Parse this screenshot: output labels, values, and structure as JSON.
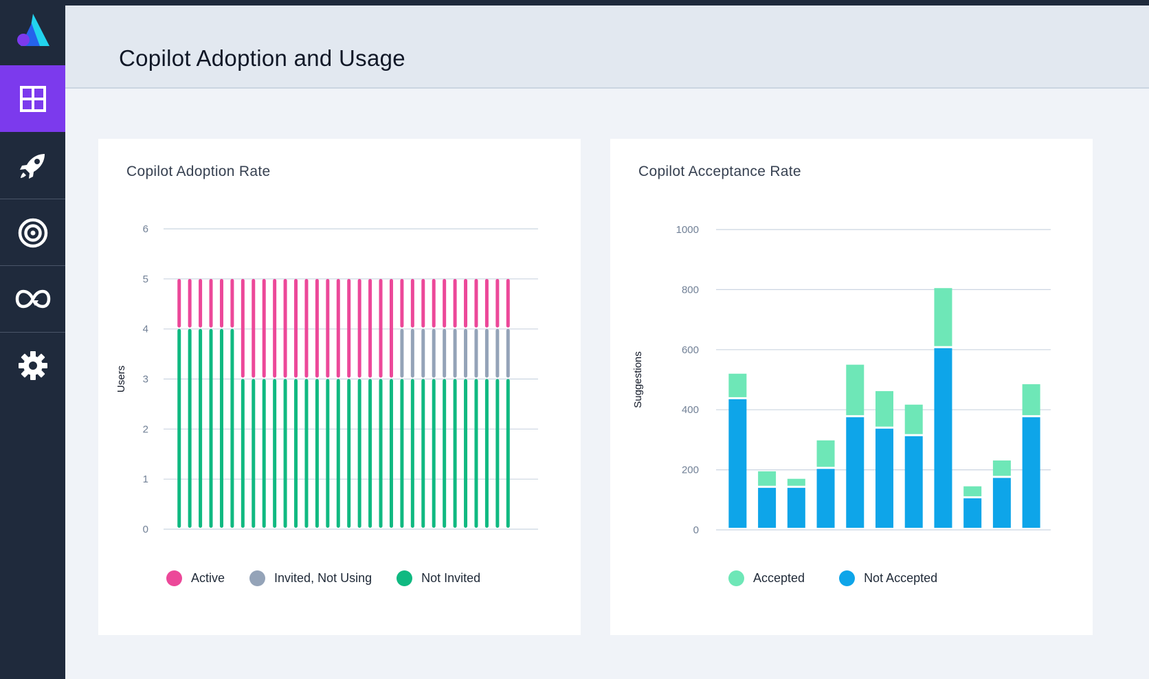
{
  "app": {
    "page_title": "Copilot Adoption and Usage"
  },
  "sidebar": {
    "logo": "app-logo",
    "items": [
      {
        "id": "dashboard",
        "icon": "grid-icon",
        "active": true
      },
      {
        "id": "launch",
        "icon": "rocket-icon",
        "active": false
      },
      {
        "id": "goals",
        "icon": "target-icon",
        "active": false
      },
      {
        "id": "cycle",
        "icon": "infinity-icon",
        "active": false
      },
      {
        "id": "settings",
        "icon": "gear-icon",
        "active": false
      }
    ]
  },
  "colors": {
    "active": "#ec4899",
    "invited_not_using": "#94a3b8",
    "not_invited": "#10b981",
    "accepted": "#6ee7b7",
    "not_accepted": "#0ea5e9",
    "sidebar_bg": "#1f2a3c",
    "sidebar_active": "#7c3aed"
  },
  "chart_data": [
    {
      "title": "Copilot Adoption Rate",
      "type": "bar",
      "stacked": true,
      "ylabel": "Users",
      "xlabel": "",
      "ylim": [
        0,
        6
      ],
      "yticks": [
        "0",
        "1",
        "2",
        "3",
        "4",
        "5",
        "6"
      ],
      "bar_count": 32,
      "series": [
        {
          "name": "Not Invited",
          "key": "not_invited",
          "values": [
            4,
            4,
            4,
            4,
            4,
            4,
            3,
            3,
            3,
            3,
            3,
            3,
            3,
            3,
            3,
            3,
            3,
            3,
            3,
            3,
            3,
            3,
            3,
            3,
            3,
            3,
            3,
            3,
            3,
            3,
            3,
            3
          ]
        },
        {
          "name": "Invited, Not Using",
          "key": "invited_not_using",
          "values": [
            0,
            0,
            0,
            0,
            0,
            0,
            0,
            0,
            0,
            0,
            0,
            0,
            0,
            0,
            0,
            0,
            0,
            0,
            0,
            0,
            0,
            1,
            1,
            1,
            1,
            1,
            1,
            1,
            1,
            1,
            1,
            1
          ]
        },
        {
          "name": "Active",
          "key": "active",
          "values": [
            1,
            1,
            1,
            1,
            1,
            1,
            2,
            2,
            2,
            2,
            2,
            2,
            2,
            2,
            2,
            2,
            2,
            2,
            2,
            2,
            2,
            1,
            1,
            1,
            1,
            1,
            1,
            1,
            1,
            1,
            1,
            1
          ]
        }
      ],
      "legend": [
        {
          "label": "Active",
          "key": "active"
        },
        {
          "label": "Invited, Not Using",
          "key": "invited_not_using"
        },
        {
          "label": "Not Invited",
          "key": "not_invited"
        }
      ]
    },
    {
      "title": "Copilot Acceptance Rate",
      "type": "bar",
      "stacked": true,
      "ylabel": "Suggestions",
      "xlabel": "",
      "ylim": [
        0,
        1000
      ],
      "yticks": [
        "0",
        "200",
        "400",
        "600",
        "800",
        "1000"
      ],
      "bar_count": 11,
      "series": [
        {
          "name": "Not Accepted",
          "key": "not_accepted",
          "values": [
            435,
            140,
            140,
            203,
            375,
            337,
            312,
            605,
            105,
            173,
            375
          ]
        },
        {
          "name": "Accepted",
          "key": "accepted",
          "values": [
            85,
            55,
            30,
            95,
            175,
            125,
            105,
            200,
            40,
            58,
            110
          ]
        }
      ],
      "legend": [
        {
          "label": "Accepted",
          "key": "accepted"
        },
        {
          "label": "Not Accepted",
          "key": "not_accepted"
        }
      ]
    }
  ]
}
